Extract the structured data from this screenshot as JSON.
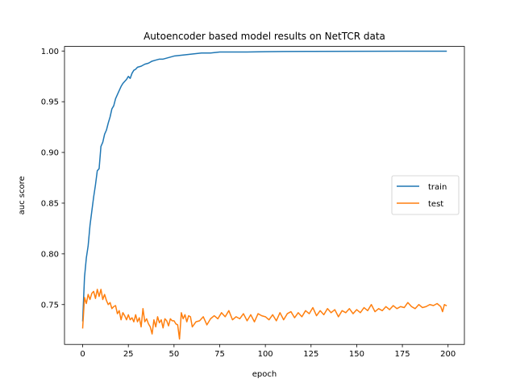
{
  "chart_data": {
    "type": "line",
    "title": "Autoencoder based model results on NetTCR data",
    "xlabel": "epoch",
    "ylabel": "auc score",
    "xlim": [
      -9.95,
      208.95
    ],
    "ylim": [
      0.7107,
      1.0045
    ],
    "xticks": [
      0,
      25,
      50,
      75,
      100,
      125,
      150,
      175,
      200
    ],
    "yticks": [
      0.75,
      0.8,
      0.85,
      0.9,
      0.95,
      1.0
    ],
    "ytick_labels": [
      "0.75",
      "0.80",
      "0.85",
      "0.90",
      "0.95",
      "1.00"
    ],
    "grid": false,
    "legend_position": "center-right",
    "series": [
      {
        "name": "train",
        "color": "#1f77b4",
        "x": [
          0,
          1,
          2,
          3,
          4,
          5,
          6,
          7,
          8,
          9,
          10,
          11,
          12,
          13,
          14,
          15,
          16,
          17,
          18,
          19,
          20,
          21,
          22,
          23,
          24,
          25,
          26,
          27,
          28,
          29,
          30,
          32,
          34,
          36,
          38,
          40,
          42,
          44,
          46,
          48,
          50,
          55,
          60,
          65,
          70,
          75,
          80,
          90,
          100,
          110,
          125,
          150,
          175,
          199
        ],
        "y": [
          0.734,
          0.777,
          0.796,
          0.808,
          0.828,
          0.842,
          0.856,
          0.868,
          0.882,
          0.884,
          0.906,
          0.91,
          0.918,
          0.922,
          0.929,
          0.935,
          0.943,
          0.946,
          0.953,
          0.957,
          0.961,
          0.965,
          0.968,
          0.97,
          0.972,
          0.975,
          0.973,
          0.978,
          0.981,
          0.982,
          0.984,
          0.985,
          0.987,
          0.988,
          0.99,
          0.991,
          0.992,
          0.992,
          0.993,
          0.994,
          0.995,
          0.996,
          0.997,
          0.998,
          0.998,
          0.999,
          0.999,
          0.999,
          0.9993,
          0.9995,
          0.9996,
          0.9997,
          0.9998,
          0.9998
        ]
      },
      {
        "name": "test",
        "color": "#ff7f0e",
        "x": [
          0,
          1,
          2,
          3,
          4,
          5,
          6,
          7,
          8,
          9,
          10,
          11,
          12,
          13,
          14,
          15,
          16,
          17,
          18,
          19,
          20,
          21,
          22,
          23,
          24,
          25,
          26,
          27,
          28,
          29,
          30,
          31,
          32,
          33,
          34,
          35,
          36,
          37,
          38,
          39,
          40,
          41,
          42,
          43,
          44,
          45,
          46,
          47,
          48,
          49,
          50,
          51,
          52,
          53,
          54,
          55,
          56,
          57,
          58,
          59,
          60,
          62,
          64,
          66,
          68,
          70,
          72,
          74,
          76,
          78,
          80,
          82,
          84,
          86,
          88,
          90,
          92,
          94,
          96,
          98,
          100,
          102,
          104,
          106,
          108,
          110,
          112,
          114,
          116,
          118,
          120,
          122,
          124,
          126,
          128,
          130,
          132,
          134,
          136,
          138,
          140,
          142,
          144,
          146,
          148,
          150,
          152,
          154,
          156,
          158,
          160,
          162,
          164,
          166,
          168,
          170,
          172,
          174,
          176,
          178,
          180,
          182,
          184,
          186,
          188,
          190,
          192,
          194,
          196,
          197,
          198,
          199
        ],
        "y": [
          0.727,
          0.757,
          0.751,
          0.76,
          0.755,
          0.761,
          0.763,
          0.756,
          0.765,
          0.758,
          0.765,
          0.755,
          0.76,
          0.754,
          0.75,
          0.752,
          0.746,
          0.748,
          0.749,
          0.741,
          0.744,
          0.735,
          0.742,
          0.739,
          0.735,
          0.74,
          0.735,
          0.737,
          0.733,
          0.74,
          0.733,
          0.737,
          0.728,
          0.746,
          0.733,
          0.736,
          0.731,
          0.728,
          0.721,
          0.735,
          0.728,
          0.738,
          0.732,
          0.735,
          0.727,
          0.736,
          0.734,
          0.729,
          0.736,
          0.734,
          0.734,
          0.731,
          0.73,
          0.716,
          0.742,
          0.736,
          0.74,
          0.733,
          0.739,
          0.738,
          0.728,
          0.733,
          0.734,
          0.738,
          0.73,
          0.736,
          0.739,
          0.736,
          0.742,
          0.738,
          0.744,
          0.735,
          0.738,
          0.736,
          0.741,
          0.734,
          0.74,
          0.733,
          0.741,
          0.739,
          0.738,
          0.735,
          0.74,
          0.734,
          0.742,
          0.735,
          0.741,
          0.743,
          0.737,
          0.742,
          0.738,
          0.744,
          0.741,
          0.747,
          0.739,
          0.744,
          0.74,
          0.746,
          0.742,
          0.745,
          0.738,
          0.744,
          0.742,
          0.746,
          0.741,
          0.745,
          0.742,
          0.747,
          0.744,
          0.75,
          0.743,
          0.746,
          0.744,
          0.748,
          0.745,
          0.749,
          0.746,
          0.748,
          0.747,
          0.752,
          0.748,
          0.746,
          0.75,
          0.747,
          0.748,
          0.75,
          0.749,
          0.751,
          0.748,
          0.743,
          0.75,
          0.749
        ]
      }
    ]
  }
}
